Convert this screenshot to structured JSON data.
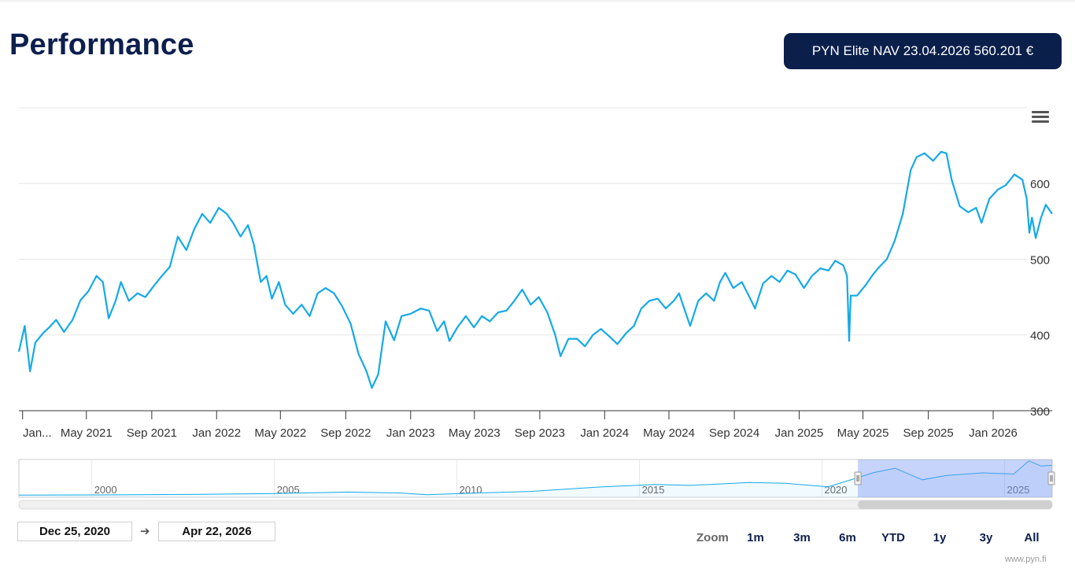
{
  "header": {
    "title": "Performance",
    "nav_badge": "PYN Elite NAV 23.04.2026 560.201 €"
  },
  "chart_data": {
    "type": "line",
    "title": "",
    "xlabel": "",
    "ylabel": "",
    "ylim": [
      300,
      700
    ],
    "yticks": [
      "300",
      "400",
      "500",
      "600"
    ],
    "grid": true,
    "xticks": [
      "Jan...",
      "May 2021",
      "Sep 2021",
      "Jan 2022",
      "May 2022",
      "Sep 2022",
      "Jan 2023",
      "May 2023",
      "Sep 2023",
      "Jan 2024",
      "May 2024",
      "Sep 2024",
      "Jan 2025",
      "May 2025",
      "Sep 2025",
      "Jan 2026"
    ],
    "series": [
      {
        "color": "#15a9e8",
        "points": [
          [
            "2020-12-25",
            378
          ],
          [
            "2021-01-05",
            412
          ],
          [
            "2021-01-15",
            352
          ],
          [
            "2021-01-25",
            390
          ],
          [
            "2021-02-08",
            402
          ],
          [
            "2021-02-20",
            410
          ],
          [
            "2021-03-05",
            420
          ],
          [
            "2021-03-20",
            404
          ],
          [
            "2021-04-05",
            420
          ],
          [
            "2021-04-20",
            446
          ],
          [
            "2021-05-05",
            458
          ],
          [
            "2021-05-20",
            478
          ],
          [
            "2021-06-01",
            470
          ],
          [
            "2021-06-12",
            422
          ],
          [
            "2021-06-25",
            445
          ],
          [
            "2021-07-05",
            470
          ],
          [
            "2021-07-20",
            445
          ],
          [
            "2021-08-05",
            455
          ],
          [
            "2021-08-20",
            450
          ],
          [
            "2021-09-05",
            465
          ],
          [
            "2021-09-20",
            478
          ],
          [
            "2021-10-05",
            490
          ],
          [
            "2021-10-20",
            530
          ],
          [
            "2021-11-05",
            512
          ],
          [
            "2021-11-20",
            540
          ],
          [
            "2021-12-05",
            560
          ],
          [
            "2021-12-20",
            548
          ],
          [
            "2022-01-05",
            568
          ],
          [
            "2022-01-20",
            560
          ],
          [
            "2022-02-01",
            548
          ],
          [
            "2022-02-15",
            530
          ],
          [
            "2022-03-01",
            545
          ],
          [
            "2022-03-12",
            520
          ],
          [
            "2022-03-25",
            470
          ],
          [
            "2022-04-05",
            478
          ],
          [
            "2022-04-15",
            448
          ],
          [
            "2022-04-28",
            470
          ],
          [
            "2022-05-10",
            440
          ],
          [
            "2022-05-25",
            428
          ],
          [
            "2022-06-10",
            440
          ],
          [
            "2022-06-25",
            425
          ],
          [
            "2022-07-10",
            455
          ],
          [
            "2022-07-25",
            462
          ],
          [
            "2022-08-10",
            455
          ],
          [
            "2022-08-25",
            438
          ],
          [
            "2022-09-10",
            415
          ],
          [
            "2022-09-25",
            375
          ],
          [
            "2022-10-10",
            352
          ],
          [
            "2022-10-20",
            330
          ],
          [
            "2022-11-01",
            348
          ],
          [
            "2022-11-15",
            418
          ],
          [
            "2022-12-01",
            393
          ],
          [
            "2022-12-15",
            425
          ],
          [
            "2023-01-01",
            428
          ],
          [
            "2023-01-20",
            435
          ],
          [
            "2023-02-05",
            432
          ],
          [
            "2023-02-20",
            405
          ],
          [
            "2023-03-05",
            418
          ],
          [
            "2023-03-15",
            392
          ],
          [
            "2023-03-30",
            410
          ],
          [
            "2023-04-15",
            425
          ],
          [
            "2023-04-30",
            410
          ],
          [
            "2023-05-15",
            425
          ],
          [
            "2023-05-30",
            418
          ],
          [
            "2023-06-15",
            430
          ],
          [
            "2023-06-30",
            432
          ],
          [
            "2023-07-15",
            445
          ],
          [
            "2023-07-30",
            460
          ],
          [
            "2023-08-15",
            440
          ],
          [
            "2023-08-30",
            450
          ],
          [
            "2023-09-15",
            430
          ],
          [
            "2023-09-30",
            400
          ],
          [
            "2023-10-10",
            372
          ],
          [
            "2023-10-25",
            395
          ],
          [
            "2023-11-10",
            395
          ],
          [
            "2023-11-25",
            385
          ],
          [
            "2023-12-10",
            400
          ],
          [
            "2023-12-25",
            408
          ],
          [
            "2024-01-10",
            398
          ],
          [
            "2024-01-25",
            388
          ],
          [
            "2024-02-10",
            402
          ],
          [
            "2024-02-25",
            412
          ],
          [
            "2024-03-10",
            435
          ],
          [
            "2024-03-25",
            445
          ],
          [
            "2024-04-10",
            448
          ],
          [
            "2024-04-25",
            435
          ],
          [
            "2024-05-10",
            445
          ],
          [
            "2024-05-20",
            455
          ],
          [
            "2024-06-01",
            430
          ],
          [
            "2024-06-10",
            412
          ],
          [
            "2024-06-25",
            445
          ],
          [
            "2024-07-10",
            455
          ],
          [
            "2024-07-25",
            445
          ],
          [
            "2024-08-05",
            470
          ],
          [
            "2024-08-15",
            482
          ],
          [
            "2024-08-30",
            462
          ],
          [
            "2024-09-15",
            470
          ],
          [
            "2024-10-01",
            448
          ],
          [
            "2024-10-10",
            435
          ],
          [
            "2024-10-25",
            468
          ],
          [
            "2024-11-10",
            478
          ],
          [
            "2024-11-25",
            470
          ],
          [
            "2024-12-10",
            485
          ],
          [
            "2024-12-25",
            480
          ],
          [
            "2025-01-10",
            462
          ],
          [
            "2025-01-25",
            478
          ],
          [
            "2025-02-10",
            488
          ],
          [
            "2025-02-25",
            485
          ],
          [
            "2025-03-10",
            498
          ],
          [
            "2025-03-25",
            492
          ],
          [
            "2025-04-01",
            478
          ],
          [
            "2025-04-05",
            392
          ],
          [
            "2025-04-08",
            452
          ],
          [
            "2025-04-20",
            452
          ],
          [
            "2025-05-05",
            465
          ],
          [
            "2025-05-20",
            480
          ],
          [
            "2025-06-01",
            490
          ],
          [
            "2025-06-15",
            500
          ],
          [
            "2025-06-30",
            525
          ],
          [
            "2025-07-15",
            560
          ],
          [
            "2025-07-30",
            618
          ],
          [
            "2025-08-10",
            635
          ],
          [
            "2025-08-25",
            640
          ],
          [
            "2025-09-10",
            630
          ],
          [
            "2025-09-25",
            642
          ],
          [
            "2025-10-05",
            640
          ],
          [
            "2025-10-15",
            605
          ],
          [
            "2025-10-30",
            570
          ],
          [
            "2025-11-15",
            562
          ],
          [
            "2025-11-30",
            568
          ],
          [
            "2025-12-10",
            548
          ],
          [
            "2025-12-25",
            580
          ],
          [
            "2026-01-10",
            592
          ],
          [
            "2026-01-25",
            598
          ],
          [
            "2026-02-10",
            612
          ],
          [
            "2026-02-25",
            605
          ],
          [
            "2026-03-05",
            580
          ],
          [
            "2026-03-10",
            535
          ],
          [
            "2026-03-15",
            555
          ],
          [
            "2026-03-22",
            528
          ],
          [
            "2026-04-01",
            555
          ],
          [
            "2026-04-10",
            572
          ],
          [
            "2026-04-22",
            560
          ]
        ]
      }
    ],
    "navigator": {
      "xticks": [
        "2000",
        "2005",
        "2010",
        "2015",
        "2020",
        "2025"
      ],
      "points": [
        [
          "1998-01-01",
          15
        ],
        [
          "2000-01-01",
          16
        ],
        [
          "2003-01-01",
          20
        ],
        [
          "2005-01-01",
          26
        ],
        [
          "2007-01-01",
          36
        ],
        [
          "2008-06-01",
          30
        ],
        [
          "2009-03-01",
          18
        ],
        [
          "2010-06-01",
          28
        ],
        [
          "2012-01-01",
          40
        ],
        [
          "2014-01-01",
          72
        ],
        [
          "2015-06-01",
          88
        ],
        [
          "2016-06-01",
          82
        ],
        [
          "2018-01-01",
          102
        ],
        [
          "2019-01-01",
          96
        ],
        [
          "2020-03-01",
          72
        ],
        [
          "2020-12-01",
          130
        ],
        [
          "2021-06-01",
          170
        ],
        [
          "2022-01-01",
          200
        ],
        [
          "2022-10-01",
          120
        ],
        [
          "2023-06-01",
          150
        ],
        [
          "2024-06-01",
          168
        ],
        [
          "2025-04-01",
          160
        ],
        [
          "2025-09-01",
          250
        ],
        [
          "2026-01-01",
          215
        ],
        [
          "2026-04-22",
          220
        ]
      ]
    }
  },
  "range_selector": {
    "from": "Dec 25, 2020",
    "to": "Apr 22, 2026",
    "arrow": "➔",
    "zoom_label": "Zoom",
    "buttons": [
      "1m",
      "3m",
      "6m",
      "YTD",
      "1y",
      "3y",
      "All"
    ]
  },
  "credit": "www.pyn.fi",
  "colors": {
    "line": "#15a9e8",
    "navy": "#0b1f4b",
    "selection": "#c7d3fb"
  },
  "icons": {
    "menu": "hamburger-menu-icon",
    "handle": "navigator-handle-icon"
  }
}
